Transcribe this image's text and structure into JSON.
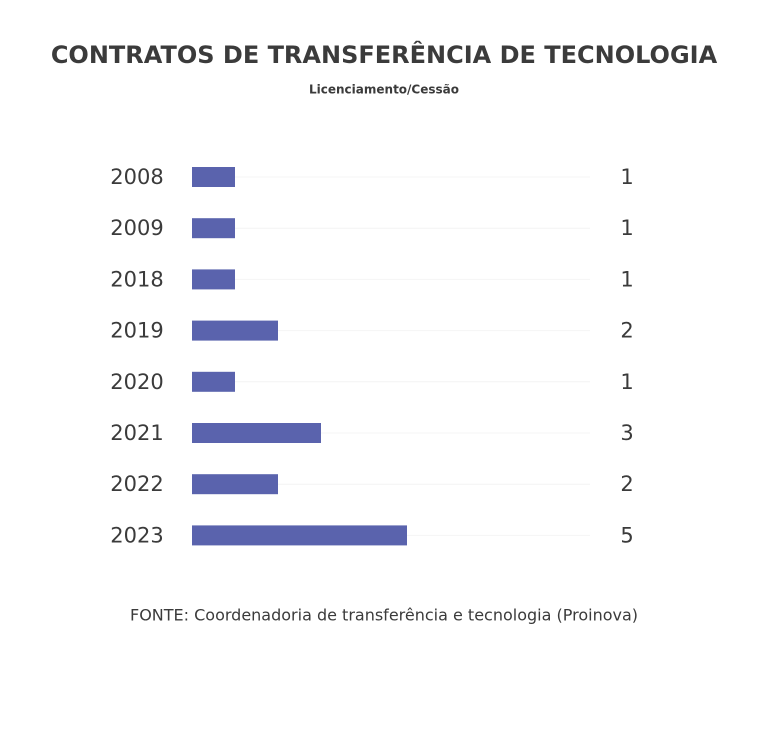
{
  "chart_data": {
    "type": "bar",
    "orientation": "horizontal",
    "title": "CONTRATOS DE TRANSFERÊNCIA DE TECNOLOGIA",
    "subtitle": "Licenciamento/Cessão",
    "categories": [
      "2008",
      "2009",
      "2018",
      "2019",
      "2020",
      "2021",
      "2022",
      "2023"
    ],
    "values": [
      1,
      1,
      1,
      2,
      1,
      3,
      2,
      5
    ],
    "color": "#5a63ad",
    "source": "FONTE: Coordenadoria de transferência e tecnologia (Proinova)"
  }
}
